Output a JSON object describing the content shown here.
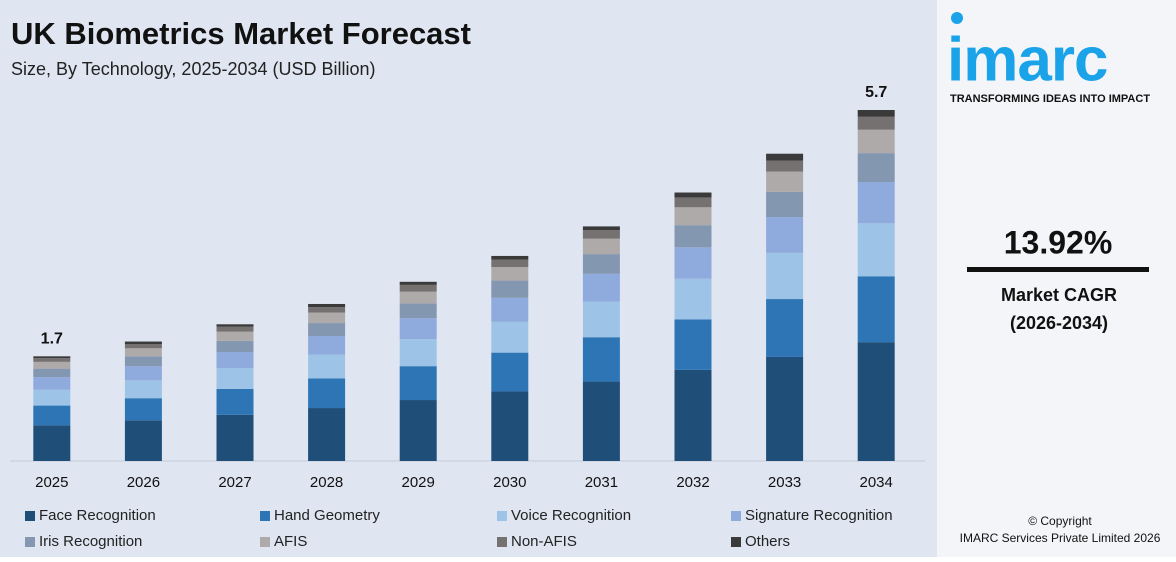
{
  "chart_data": {
    "type": "stacked-bar",
    "title": "UK Biometrics Market Forecast",
    "subtitle": "Size, By Technology, 2025-2034 (USD Billion)",
    "categories": [
      "2025",
      "2026",
      "2027",
      "2028",
      "2029",
      "2030",
      "2031",
      "2032",
      "2033",
      "2034"
    ],
    "series": [
      {
        "name": "Face Recognition",
        "color": "#1f4e79",
        "values": [
          0.58,
          0.66,
          0.75,
          0.86,
          0.99,
          1.13,
          1.29,
          1.48,
          1.69,
          1.93
        ]
      },
      {
        "name": "Hand Geometry",
        "color": "#2e75b6",
        "values": [
          0.32,
          0.36,
          0.42,
          0.48,
          0.55,
          0.63,
          0.72,
          0.82,
          0.94,
          1.07
        ]
      },
      {
        "name": "Voice Recognition",
        "color": "#9dc3e6",
        "values": [
          0.26,
          0.29,
          0.34,
          0.39,
          0.44,
          0.5,
          0.58,
          0.66,
          0.75,
          0.86
        ]
      },
      {
        "name": "Signature Recognition",
        "color": "#8faadc",
        "values": [
          0.2,
          0.23,
          0.26,
          0.3,
          0.34,
          0.39,
          0.45,
          0.51,
          0.58,
          0.67
        ]
      },
      {
        "name": "Iris Recognition",
        "color": "#8497b0",
        "values": [
          0.14,
          0.16,
          0.18,
          0.21,
          0.24,
          0.28,
          0.32,
          0.36,
          0.41,
          0.47
        ]
      },
      {
        "name": "AFIS",
        "color": "#aeaaaa",
        "values": [
          0.11,
          0.13,
          0.15,
          0.17,
          0.19,
          0.22,
          0.25,
          0.29,
          0.33,
          0.38
        ]
      },
      {
        "name": "Non-AFIS",
        "color": "#767171",
        "values": [
          0.06,
          0.07,
          0.08,
          0.09,
          0.11,
          0.12,
          0.14,
          0.16,
          0.18,
          0.21
        ]
      },
      {
        "name": "Others",
        "color": "#3a3a3a",
        "values": [
          0.03,
          0.04,
          0.04,
          0.05,
          0.05,
          0.06,
          0.06,
          0.08,
          0.11,
          0.11
        ]
      }
    ],
    "totals": [
      1.7,
      null,
      null,
      null,
      null,
      null,
      null,
      null,
      null,
      5.7
    ],
    "ylim": [
      0,
      5.7
    ]
  },
  "side": {
    "logo": "imarc",
    "tagline": "TRANSFORMING IDEAS INTO IMPACT",
    "cagr": "13.92%",
    "cagr_label": "Market CAGR",
    "cagr_period": "(2026-2034)",
    "copyright": "© Copyright",
    "company": "IMARC Services Private Limited 2026"
  }
}
